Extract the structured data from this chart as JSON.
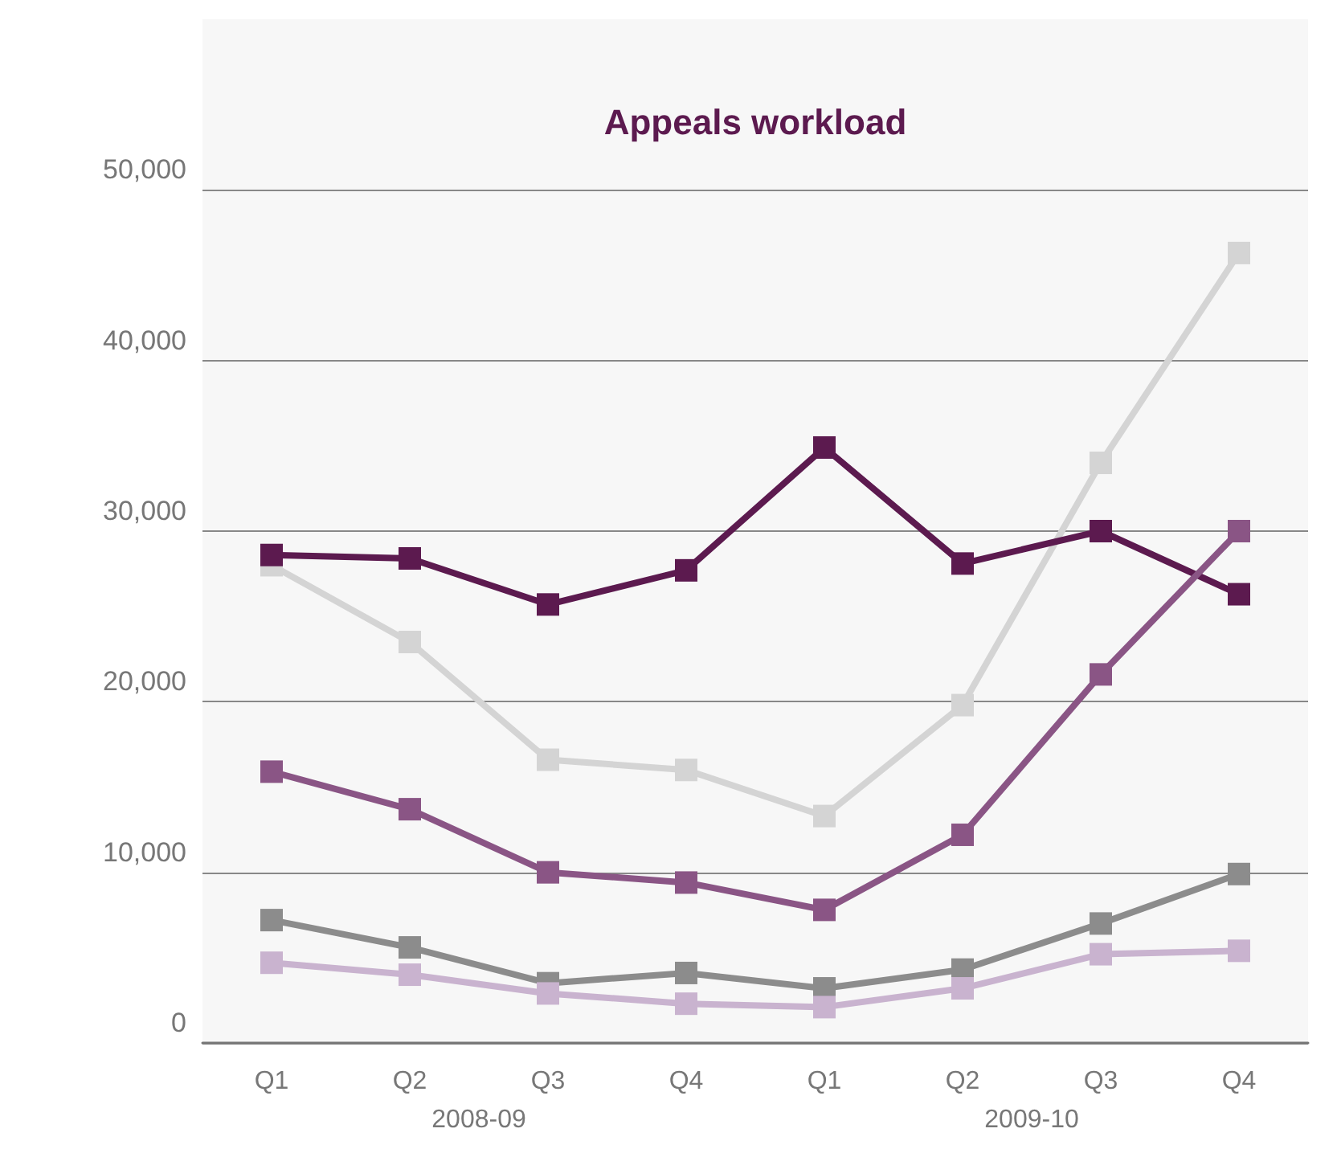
{
  "chart_data": {
    "type": "line",
    "title": "Appeals workload",
    "categories": [
      "Q1",
      "Q2",
      "Q3",
      "Q4",
      "Q1",
      "Q2",
      "Q3",
      "Q4"
    ],
    "annotations": [
      "2008-09",
      "2009-10"
    ],
    "series": [
      {
        "color": "#d4d4d4",
        "values": [
          28000,
          23500,
          16600,
          16000,
          13300,
          19800,
          34000,
          46300
        ]
      },
      {
        "color": "#5c1a4f",
        "values": [
          28600,
          28400,
          25700,
          27700,
          34900,
          28100,
          30000,
          26300
        ]
      },
      {
        "color": "#8a5585",
        "values": [
          15900,
          13700,
          10000,
          9400,
          7800,
          12200,
          21600,
          30000
        ]
      },
      {
        "color": "#8c8c8c",
        "values": [
          7200,
          5600,
          3500,
          4100,
          3200,
          4300,
          7000,
          9900
        ]
      },
      {
        "color": "#c9b3cf",
        "values": [
          4700,
          4000,
          2900,
          2300,
          2100,
          3200,
          5200,
          5400
        ]
      }
    ],
    "ylim": [
      0,
      60000
    ],
    "yticks": [
      0,
      {
        "value": 10000,
        "label": "10,000"
      },
      {
        "value": 20000,
        "label": "20,000"
      },
      {
        "value": 30000,
        "label": "30,000"
      },
      {
        "value": 40000,
        "label": "40,000"
      },
      {
        "value": 50000,
        "label": "50,000"
      }
    ],
    "grid": "y",
    "marker": "square",
    "line_style": "solid"
  }
}
